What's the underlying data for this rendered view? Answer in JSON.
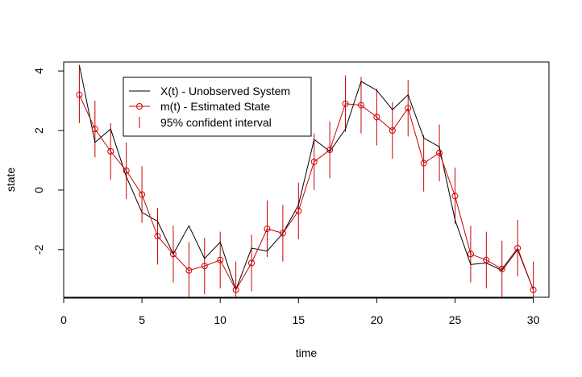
{
  "chart_data": {
    "type": "line",
    "title": "",
    "xlabel": "time",
    "ylabel": "state",
    "xlim": [
      0,
      31
    ],
    "ylim": [
      -3.6,
      4.3
    ],
    "x_ticks": [
      0,
      5,
      10,
      15,
      20,
      25,
      30
    ],
    "y_ticks": [
      -2,
      0,
      2,
      4
    ],
    "x": [
      1,
      2,
      3,
      4,
      5,
      6,
      7,
      8,
      9,
      10,
      11,
      12,
      13,
      14,
      15,
      16,
      17,
      18,
      19,
      20,
      21,
      22,
      23,
      24,
      25,
      26,
      27,
      28,
      29,
      30
    ],
    "series": [
      {
        "name": "X(t) - Unobserved System",
        "color": "#000000",
        "values": [
          4.2,
          1.6,
          2.05,
          0.45,
          -0.75,
          -1.05,
          -2.15,
          -1.2,
          -2.3,
          -1.75,
          -3.35,
          -1.95,
          -2.05,
          -1.45,
          -0.5,
          1.7,
          1.3,
          2.05,
          3.65,
          3.35,
          2.7,
          3.2,
          1.75,
          1.45,
          -1.0,
          -2.5,
          -2.45,
          -2.7,
          -2.0,
          -3.35
        ]
      },
      {
        "name": "m(t) - Estimated State",
        "color": "#cc0000",
        "values": [
          3.2,
          2.05,
          1.3,
          0.65,
          -0.15,
          -1.55,
          -2.15,
          -2.7,
          -2.55,
          -2.35,
          -3.35,
          -2.45,
          -1.3,
          -1.45,
          -0.7,
          0.95,
          1.35,
          2.9,
          2.85,
          2.45,
          2.0,
          2.75,
          0.9,
          1.25,
          -0.2,
          -2.15,
          -2.35,
          -2.65,
          -1.95,
          -3.35
        ]
      }
    ],
    "interval": {
      "name": "95% confident interval",
      "color": "#cc0000",
      "lower": [
        2.25,
        1.1,
        0.35,
        -0.3,
        -1.1,
        -2.5,
        -3.1,
        -3.65,
        -3.5,
        -3.3,
        -4.3,
        -3.4,
        -2.25,
        -2.4,
        -1.65,
        0.0,
        0.4,
        1.95,
        1.9,
        1.5,
        1.05,
        1.8,
        -0.05,
        0.3,
        -1.15,
        -3.1,
        -3.3,
        -3.6,
        -2.9,
        -4.3
      ],
      "upper": [
        4.15,
        3.0,
        2.25,
        1.6,
        0.8,
        -0.6,
        -1.2,
        -1.75,
        -1.6,
        -1.4,
        -2.4,
        -1.5,
        -0.35,
        -0.5,
        0.25,
        1.9,
        2.3,
        3.85,
        3.8,
        3.4,
        2.95,
        3.7,
        1.85,
        2.2,
        0.75,
        -1.2,
        -1.4,
        -1.7,
        -1.0,
        -2.4
      ]
    },
    "legend": {
      "placement": "top-left",
      "entries": [
        "X(t) - Unobserved System",
        "m(t) - Estimated State",
        "95% confident interval"
      ]
    },
    "grid": false
  }
}
